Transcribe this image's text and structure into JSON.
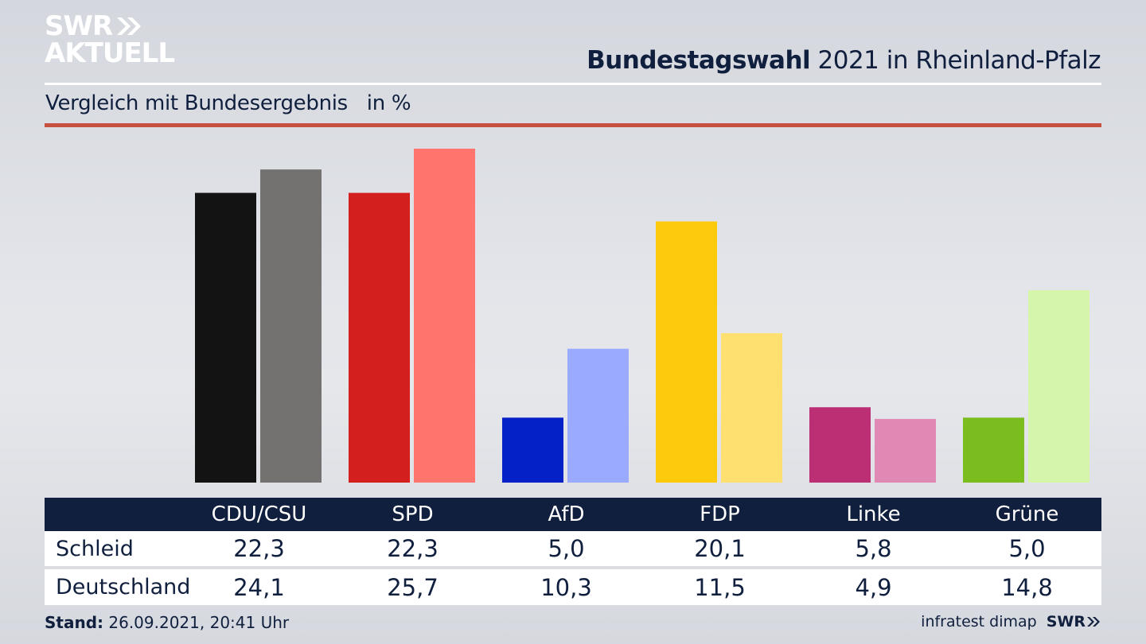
{
  "logo": {
    "line1": "SWR",
    "line2": "AKTUELL"
  },
  "header": {
    "title_bold": "Bundestagswahl",
    "title_rest": " 2021 in Rheinland-Pfalz",
    "subtitle": "Vergleich mit Bundesergebnis   in %"
  },
  "colors": {
    "navy": "#0f1f3d",
    "accent_red": "#c8503f"
  },
  "chart_data": {
    "type": "bar",
    "title": "Bundestagswahl 2021 in Rheinland-Pfalz",
    "subtitle": "Vergleich mit Bundesergebnis   in %",
    "xlabel": "",
    "ylabel": "in %",
    "ylim": [
      0,
      25.7
    ],
    "grid": false,
    "categories": [
      "CDU/CSU",
      "SPD",
      "AfD",
      "FDP",
      "Linke",
      "Grüne"
    ],
    "series": [
      {
        "name": "Schleid",
        "values": [
          22.3,
          22.3,
          5.0,
          20.1,
          5.8,
          5.0
        ],
        "labels": [
          "22,3",
          "22,3",
          "5,0",
          "20,1",
          "5,8",
          "5,0"
        ],
        "colors": [
          "#131313",
          "#d41f1f",
          "#0321c6",
          "#fdcb0b",
          "#bd2f74",
          "#7bbd1e"
        ]
      },
      {
        "name": "Deutschland",
        "values": [
          24.1,
          25.7,
          10.3,
          11.5,
          4.9,
          14.8
        ],
        "labels": [
          "24,1",
          "25,7",
          "10,3",
          "11,5",
          "4,9",
          "14,8"
        ],
        "colors": [
          "#737270",
          "#ff746c",
          "#9aaaff",
          "#fde070",
          "#df89b4",
          "#d5f6aa"
        ]
      }
    ]
  },
  "footer": {
    "stand_label": "Stand:",
    "stand_value": " 26.09.2021, 20:41 Uhr",
    "source": "infratest dimap",
    "source_logo": "SWR"
  }
}
